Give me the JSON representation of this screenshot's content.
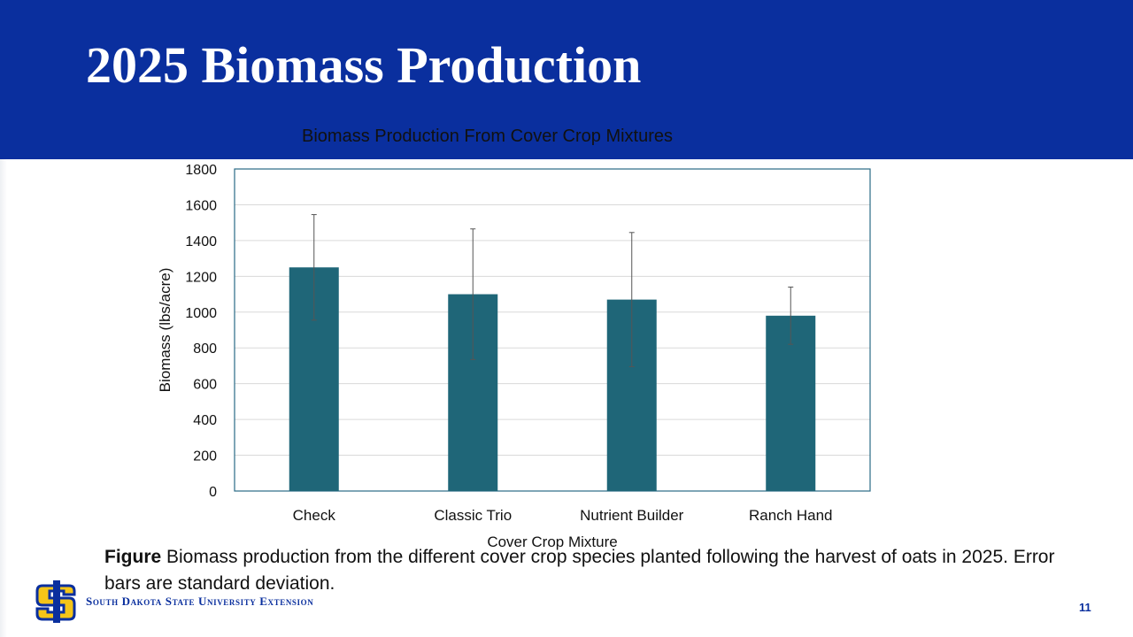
{
  "slide": {
    "title": "2025 Biomass Production",
    "page_number": "11",
    "org_name": "South Dakota State University Extension",
    "caption_bold": "Figure",
    "caption_text": " Biomass production from the different cover crop species planted following the harvest of oats in 2025. Error bars are standard deviation."
  },
  "colors": {
    "header": "#0a2f9e",
    "bar": "#1f6678",
    "logo_gold": "#f5c518"
  },
  "chart_data": {
    "type": "bar",
    "title": "Biomass Production From Cover Crop Mixtures",
    "xlabel": "Cover Crop Mixture",
    "ylabel": "Biomass (lbs/acre)",
    "categories": [
      "Check",
      "Classic Trio",
      "Nutrient Builder",
      "Ranch Hand"
    ],
    "values": [
      1250,
      1100,
      1070,
      980
    ],
    "error": [
      295,
      365,
      375,
      160
    ],
    "ylim": [
      0,
      1800
    ],
    "yticks": [
      0,
      200,
      400,
      600,
      800,
      1000,
      1200,
      1400,
      1600,
      1800
    ],
    "grid": true,
    "legend": "none"
  }
}
